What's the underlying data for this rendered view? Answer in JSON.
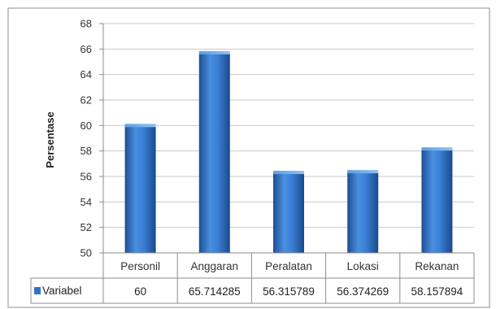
{
  "chart_data": {
    "type": "bar",
    "categories": [
      "Personil",
      "Anggaran",
      "Peralatan",
      "Lokasi",
      "Rekanan"
    ],
    "series": [
      {
        "name": "Variabel",
        "values": [
          60,
          65.714285,
          56.315789,
          56.374269,
          58.157894
        ],
        "value_labels": [
          "60",
          "65.714285",
          "56.315789",
          "56.374269",
          "58.157894"
        ],
        "color": "#2e74c8"
      }
    ],
    "ylabel": "Persentase",
    "xlabel": "",
    "ylim": [
      50,
      68
    ],
    "yticks": [
      50,
      52,
      54,
      56,
      58,
      60,
      62,
      64,
      66,
      68
    ],
    "grid": true,
    "legend": "data-table"
  }
}
